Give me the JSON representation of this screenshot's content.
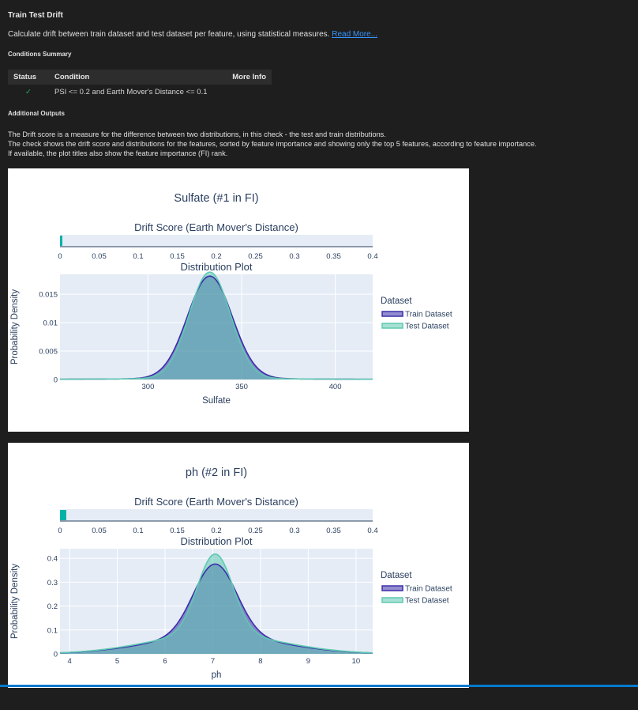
{
  "header": {
    "title": "Train Test Drift",
    "description": "Calculate drift between train dataset and test dataset per feature, using statistical measures.",
    "read_more": "Read More..."
  },
  "conditions": {
    "heading": "Conditions Summary",
    "columns": [
      "Status",
      "Condition",
      "More Info"
    ],
    "rows": [
      {
        "status": "✓",
        "condition": "PSI <= 0.2 and Earth Mover's Distance <= 0.1",
        "more_info": ""
      }
    ]
  },
  "additional": {
    "heading": "Additional Outputs",
    "lines": [
      "The Drift score is a measure for the difference between two distributions, in this check - the test and train distributions.",
      "The check shows the drift score and distributions for the features, sorted by feature importance and showing only the top 5 features, according to feature importance.",
      "If available, the plot titles also show the feature importance (FI) rank."
    ]
  },
  "colors": {
    "train": "#3b2ea8",
    "test": "#5ec9b0",
    "plot_bg": "#e5ecf6",
    "status_ok": "#27ae60",
    "link": "#3794ff"
  },
  "chart_data": [
    {
      "type": "area",
      "title": "Sulfate (#1 in FI)",
      "drift": {
        "title": "Drift Score (Earth Mover's Distance)",
        "value": 0.003,
        "xlim": [
          0,
          0.4
        ],
        "ticks": [
          "0",
          "0.05",
          "0.1",
          "0.15",
          "0.2",
          "0.25",
          "0.3",
          "0.35",
          "0.4"
        ]
      },
      "dist": {
        "title": "Distribution Plot",
        "xlabel": "Sulfate",
        "ylabel": "Probability Density",
        "xlim": [
          253,
          420
        ],
        "ylim": [
          0,
          0.0185
        ],
        "xticks": [
          300,
          350,
          400
        ],
        "yticks": [
          0,
          0.005,
          0.01,
          0.015
        ],
        "ytick_labels": [
          "0",
          "0.005",
          "0.01",
          "0.015"
        ],
        "center": 333,
        "peak_train": 0.0182,
        "peak_test": 0.0189,
        "sigma": 12,
        "sigma_test": 11,
        "base_amp": 0.0078,
        "base_sigma": 55
      },
      "legend": {
        "title": "Dataset",
        "items": [
          "Train Dataset",
          "Test Dataset"
        ]
      }
    },
    {
      "type": "area",
      "title": "ph (#2 in FI)",
      "drift": {
        "title": "Drift Score (Earth Mover's Distance)",
        "value": 0.008,
        "xlim": [
          0,
          0.4
        ],
        "ticks": [
          "0",
          "0.05",
          "0.1",
          "0.15",
          "0.2",
          "0.25",
          "0.3",
          "0.35",
          "0.4"
        ]
      },
      "dist": {
        "title": "Distribution Plot",
        "xlabel": "ph",
        "ylabel": "Probability Density",
        "xlim": [
          3.8,
          10.35
        ],
        "ylim": [
          0,
          0.44
        ],
        "xticks": [
          4,
          5,
          6,
          7,
          8,
          9,
          10
        ],
        "yticks": [
          0,
          0.1,
          0.2,
          0.3,
          0.4
        ],
        "ytick_labels": [
          "0",
          "0.1",
          "0.2",
          "0.3",
          "0.4"
        ],
        "center": 7.05,
        "peak_train": 0.376,
        "peak_test": 0.418,
        "sigma": 0.45,
        "sigma_test": 0.37,
        "base_amp": 0.2,
        "base_sigma": 1.35
      },
      "legend": {
        "title": "Dataset",
        "items": [
          "Train Dataset",
          "Test Dataset"
        ]
      }
    }
  ]
}
